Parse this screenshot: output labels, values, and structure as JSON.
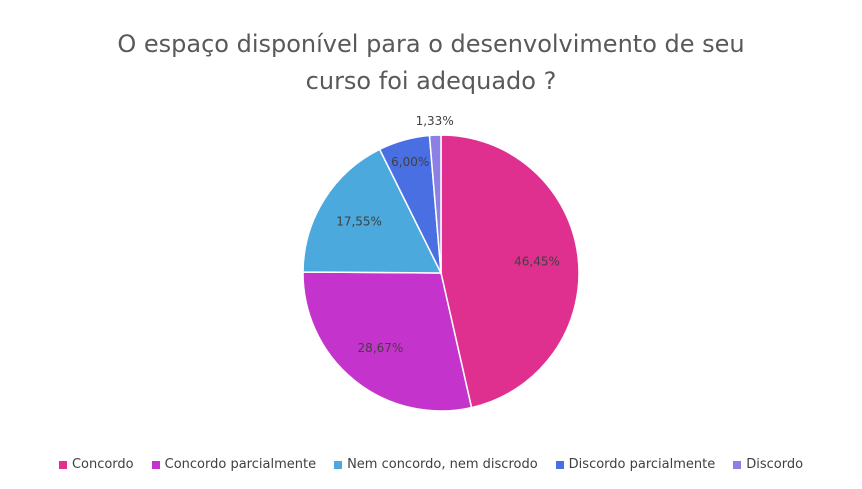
{
  "chart_data": {
    "type": "pie",
    "title": "O espaço disponível para o desenvolvimento de seu curso foi adequado ?",
    "categories": [
      "Concordo",
      "Concordo parcialmente",
      "Nem concordo, nem discrodo",
      "Discordo parcialmente",
      "Discordo"
    ],
    "values": [
      46.45,
      28.67,
      17.55,
      6.0,
      1.33
    ],
    "value_labels": [
      "46,45%",
      "28,67%",
      "17,55%",
      "6,00%",
      "1,33%"
    ],
    "colors": [
      "#e0308f",
      "#c434cc",
      "#4ba9dd",
      "#4a6fe2",
      "#8c80e4"
    ],
    "legend": "bottom"
  }
}
